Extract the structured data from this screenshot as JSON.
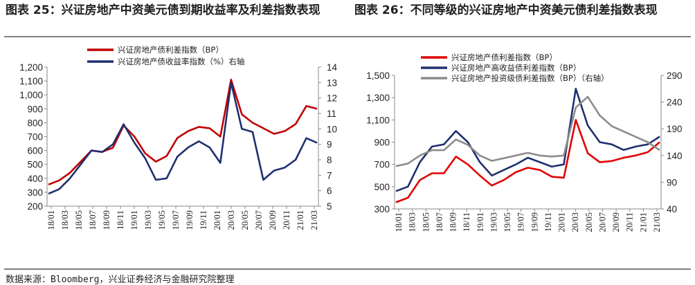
{
  "titles": {
    "left": "图表 25：兴证房地产中资美元债到期收益率及利差指数表现",
    "right": "图表 26：不同等级的兴证房地产中资美元债利差指数表现"
  },
  "source": "数据来源：Bloomberg，兴业证券经济与金融研究院整理",
  "chart_data": [
    {
      "type": "line",
      "x_labels": [
        "18/01",
        "18/03",
        "18/05",
        "18/07",
        "18/09",
        "18/11",
        "19/01",
        "19/03",
        "19/05",
        "19/07",
        "19/09",
        "19/11",
        "20/01",
        "20/03",
        "20/05",
        "20/07",
        "20/09",
        "20/11",
        "21/01",
        "21/03"
      ],
      "y_left": {
        "ticks": [
          "200",
          "300",
          "400",
          "500",
          "600",
          "700",
          "800",
          "900",
          "1,000",
          "1,100",
          "1,200"
        ],
        "range": [
          200,
          1200
        ]
      },
      "y_right": {
        "ticks": [
          "5",
          "6",
          "7",
          "8",
          "9",
          "10",
          "11",
          "12",
          "13",
          "14"
        ],
        "range": [
          5,
          14
        ]
      },
      "series": [
        {
          "name": "兴证房地产债利差指数（BP）",
          "color": "#c00000",
          "axis": "left",
          "values": [
            355,
            385,
            440,
            520,
            600,
            590,
            620,
            780,
            700,
            580,
            520,
            560,
            690,
            740,
            770,
            760,
            700,
            1110,
            860,
            800,
            760,
            720,
            740,
            790,
            920,
            900
          ]
        },
        {
          "name": "兴证房地产债收益率指数（%）右轴",
          "color": "#1f2f6e",
          "axis": "right",
          "values": [
            5.8,
            6.1,
            6.8,
            7.7,
            8.6,
            8.5,
            9.0,
            10.3,
            9.1,
            8.1,
            6.7,
            6.8,
            8.2,
            8.8,
            9.2,
            8.8,
            7.8,
            13.0,
            10.0,
            9.8,
            6.7,
            7.3,
            7.5,
            8.0,
            9.4,
            9.1
          ]
        }
      ]
    },
    {
      "type": "line",
      "x_labels": [
        "18/01",
        "18/03",
        "18/05",
        "18/07",
        "18/09",
        "18/11",
        "19/01",
        "19/03",
        "19/05",
        "19/07",
        "19/09",
        "19/11",
        "20/01",
        "20/03",
        "20/05",
        "20/07",
        "20/09",
        "20/11",
        "21/01",
        "21/03"
      ],
      "y_left": {
        "ticks": [
          "300",
          "500",
          "700",
          "900",
          "1,100",
          "1,300",
          "1,500"
        ],
        "range": [
          300,
          1500
        ]
      },
      "y_right": {
        "ticks": [
          "40",
          "90",
          "140",
          "190",
          "240",
          "290"
        ],
        "range": [
          40,
          290
        ]
      },
      "series": [
        {
          "name": "兴证房地产债利差指数（BP）",
          "color": "#e00000",
          "axis": "left",
          "values": [
            360,
            400,
            560,
            620,
            620,
            770,
            700,
            600,
            510,
            560,
            630,
            670,
            650,
            590,
            580,
            1100,
            800,
            720,
            730,
            760,
            780,
            810,
            900
          ]
        },
        {
          "name": "兴证房地产高收益债利差指数（BP）",
          "color": "#1f2f6e",
          "axis": "left",
          "values": [
            460,
            500,
            720,
            860,
            880,
            1000,
            900,
            720,
            600,
            650,
            700,
            760,
            720,
            680,
            700,
            1380,
            1050,
            900,
            880,
            830,
            860,
            880,
            950
          ]
        },
        {
          "name": "兴证房地产投资级债利差指数（BP）（右轴）",
          "color": "#8c8c8c",
          "axis": "right",
          "values": [
            120,
            125,
            140,
            150,
            150,
            170,
            160,
            140,
            130,
            135,
            140,
            145,
            140,
            138,
            140,
            230,
            250,
            215,
            195,
            185,
            175,
            165,
            150
          ]
        }
      ]
    }
  ]
}
